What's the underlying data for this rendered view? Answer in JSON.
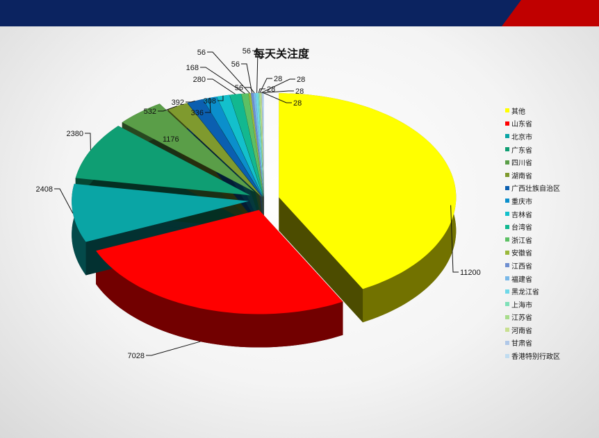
{
  "chart_data": {
    "type": "pie",
    "title": "每天关注度",
    "legend_position": "right",
    "categories": [
      "其他",
      "山东省",
      "北京市",
      "广东省",
      "四川省",
      "湖南省",
      "广西壮族自治区",
      "重庆市",
      "吉林省",
      "台湾省",
      "浙江省",
      "安徽省",
      "江西省",
      "福建省",
      "黑龙江省",
      "上海市",
      "江苏省",
      "河南省",
      "甘肃省",
      "香港特别行政区"
    ],
    "values": [
      11200,
      7028,
      2408,
      2380,
      1176,
      532,
      392,
      336,
      308,
      280,
      168,
      56,
      56,
      56,
      56,
      28,
      28,
      28,
      28,
      28
    ],
    "colors": [
      "#ffff00",
      "#ff0000",
      "#0aa5a5",
      "#0f9e73",
      "#5a9e48",
      "#7f9a2e",
      "#0b5fb0",
      "#0b8fcc",
      "#13c0cc",
      "#12b890",
      "#5cc064",
      "#9ab83a",
      "#6f8fd0",
      "#79b8e8",
      "#6fd8e8",
      "#7fe0b8",
      "#a8dc8c",
      "#c8e090",
      "#b0c8e8",
      "#c0dcf0"
    ]
  },
  "header": {
    "bar_color": "#0b2360",
    "accent_color": "#c00000"
  }
}
